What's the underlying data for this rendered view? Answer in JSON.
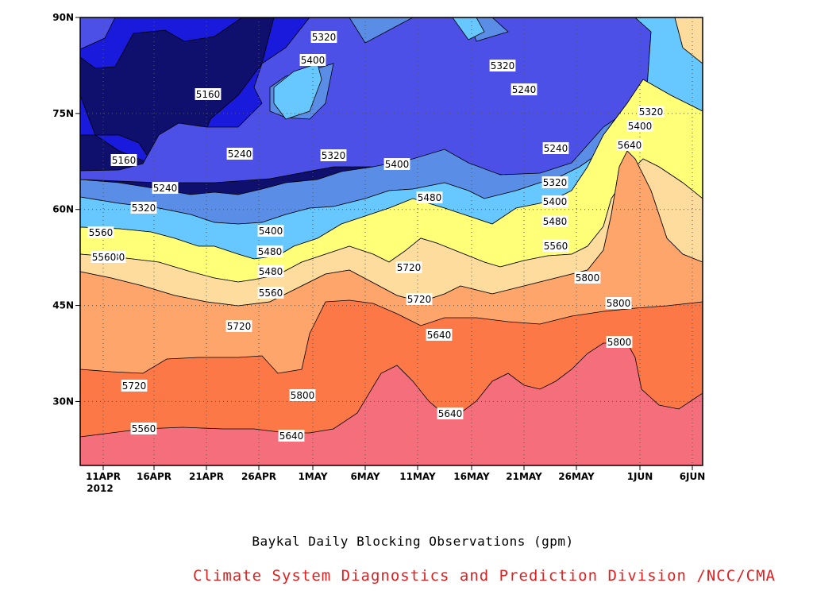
{
  "chart_data": {
    "type": "contour",
    "title": "Baykal Daily Blocking Observations (gpm)",
    "credit": "Climate System Diagnostics and Prediction Division /NCC/CMA",
    "credit_color": "#e02020",
    "x_axis": {
      "ticks": [
        "11APR",
        "16APR",
        "21APR",
        "26APR",
        "1MAY",
        "6MAY",
        "11MAY",
        "16MAY",
        "21MAY",
        "26MAY",
        "1JUN",
        "6JUN"
      ],
      "year_label": "2012",
      "range": [
        "2012-04-09",
        "2012-06-07"
      ]
    },
    "y_axis": {
      "ticks": [
        "30N",
        "45N",
        "60N",
        "75N",
        "90N"
      ],
      "tick_values": [
        30,
        45,
        60,
        75,
        90
      ],
      "range": [
        20,
        90
      ]
    },
    "levels": [
      5160,
      5240,
      5320,
      5400,
      5480,
      5560,
      5640,
      5720,
      5800
    ],
    "fill_colors": [
      "#0f0f6e",
      "#1a1add",
      "#4d50e6",
      "#5a8de5",
      "#66c8ff",
      "#ffff78",
      "#fddc9d",
      "#fda56b",
      "#fc7846",
      "#f46e7c"
    ],
    "contour_labels": [
      "5320",
      "5400",
      "5160",
      "5240",
      "5320",
      "5400",
      "5320",
      "5240",
      "5160",
      "5240",
      "5320",
      "5400",
      "5480",
      "5480",
      "5560",
      "5240",
      "5320",
      "5400",
      "5480",
      "5560",
      "5320",
      "5400",
      "5480",
      "5560",
      "5640",
      "5720",
      "5800",
      "5720",
      "5800",
      "5720",
      "5800",
      "5640",
      "5720",
      "5800",
      "5560",
      "5640",
      "5640",
      "5480",
      "5560"
    ],
    "grid": true
  }
}
